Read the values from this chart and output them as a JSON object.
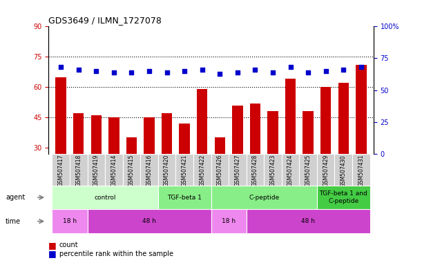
{
  "title": "GDS3649 / ILMN_1727078",
  "samples": [
    "GSM507417",
    "GSM507418",
    "GSM507419",
    "GSM507414",
    "GSM507415",
    "GSM507416",
    "GSM507420",
    "GSM507421",
    "GSM507422",
    "GSM507426",
    "GSM507427",
    "GSM507428",
    "GSM507423",
    "GSM507424",
    "GSM507425",
    "GSM507429",
    "GSM507430",
    "GSM507431"
  ],
  "counts": [
    65,
    47,
    46,
    45,
    35,
    45,
    47,
    42,
    59,
    35,
    51,
    52,
    48,
    64,
    48,
    60,
    62,
    71
  ],
  "percentiles": [
    68,
    66,
    65,
    64,
    64,
    65,
    64,
    65,
    66,
    63,
    64,
    66,
    64,
    68,
    64,
    65,
    66,
    68
  ],
  "left_ylim": [
    27,
    90
  ],
  "left_yticks": [
    30,
    45,
    60,
    75,
    90
  ],
  "right_ylim": [
    0,
    100
  ],
  "right_yticks": [
    0,
    25,
    50,
    75,
    100
  ],
  "right_yticklabels": [
    "0",
    "25",
    "50",
    "75",
    "100%"
  ],
  "bar_color": "#cc0000",
  "dot_color": "#0000cc",
  "agent_row": [
    {
      "label": "control",
      "start": 0,
      "end": 6,
      "color": "#ccffcc"
    },
    {
      "label": "TGF-beta 1",
      "start": 6,
      "end": 9,
      "color": "#88ee88"
    },
    {
      "label": "C-peptide",
      "start": 9,
      "end": 15,
      "color": "#88ee88"
    },
    {
      "label": "TGF-beta 1 and\nC-peptide",
      "start": 15,
      "end": 18,
      "color": "#44cc44"
    }
  ],
  "time_row": [
    {
      "label": "18 h",
      "start": 0,
      "end": 2,
      "color": "#ee88ee"
    },
    {
      "label": "48 h",
      "start": 2,
      "end": 9,
      "color": "#cc44cc"
    },
    {
      "label": "18 h",
      "start": 9,
      "end": 11,
      "color": "#ee88ee"
    },
    {
      "label": "48 h",
      "start": 11,
      "end": 18,
      "color": "#cc44cc"
    }
  ],
  "grid_yticks": [
    45,
    60,
    75
  ],
  "bg_color": "#ffffff",
  "plot_bg": "#ffffff",
  "agent_light": "#ccffcc",
  "agent_medium": "#88ee88",
  "agent_dark": "#44cc44",
  "time_light": "#ee88ee",
  "time_dark": "#cc44cc",
  "label_bg": "#d0d0d0"
}
